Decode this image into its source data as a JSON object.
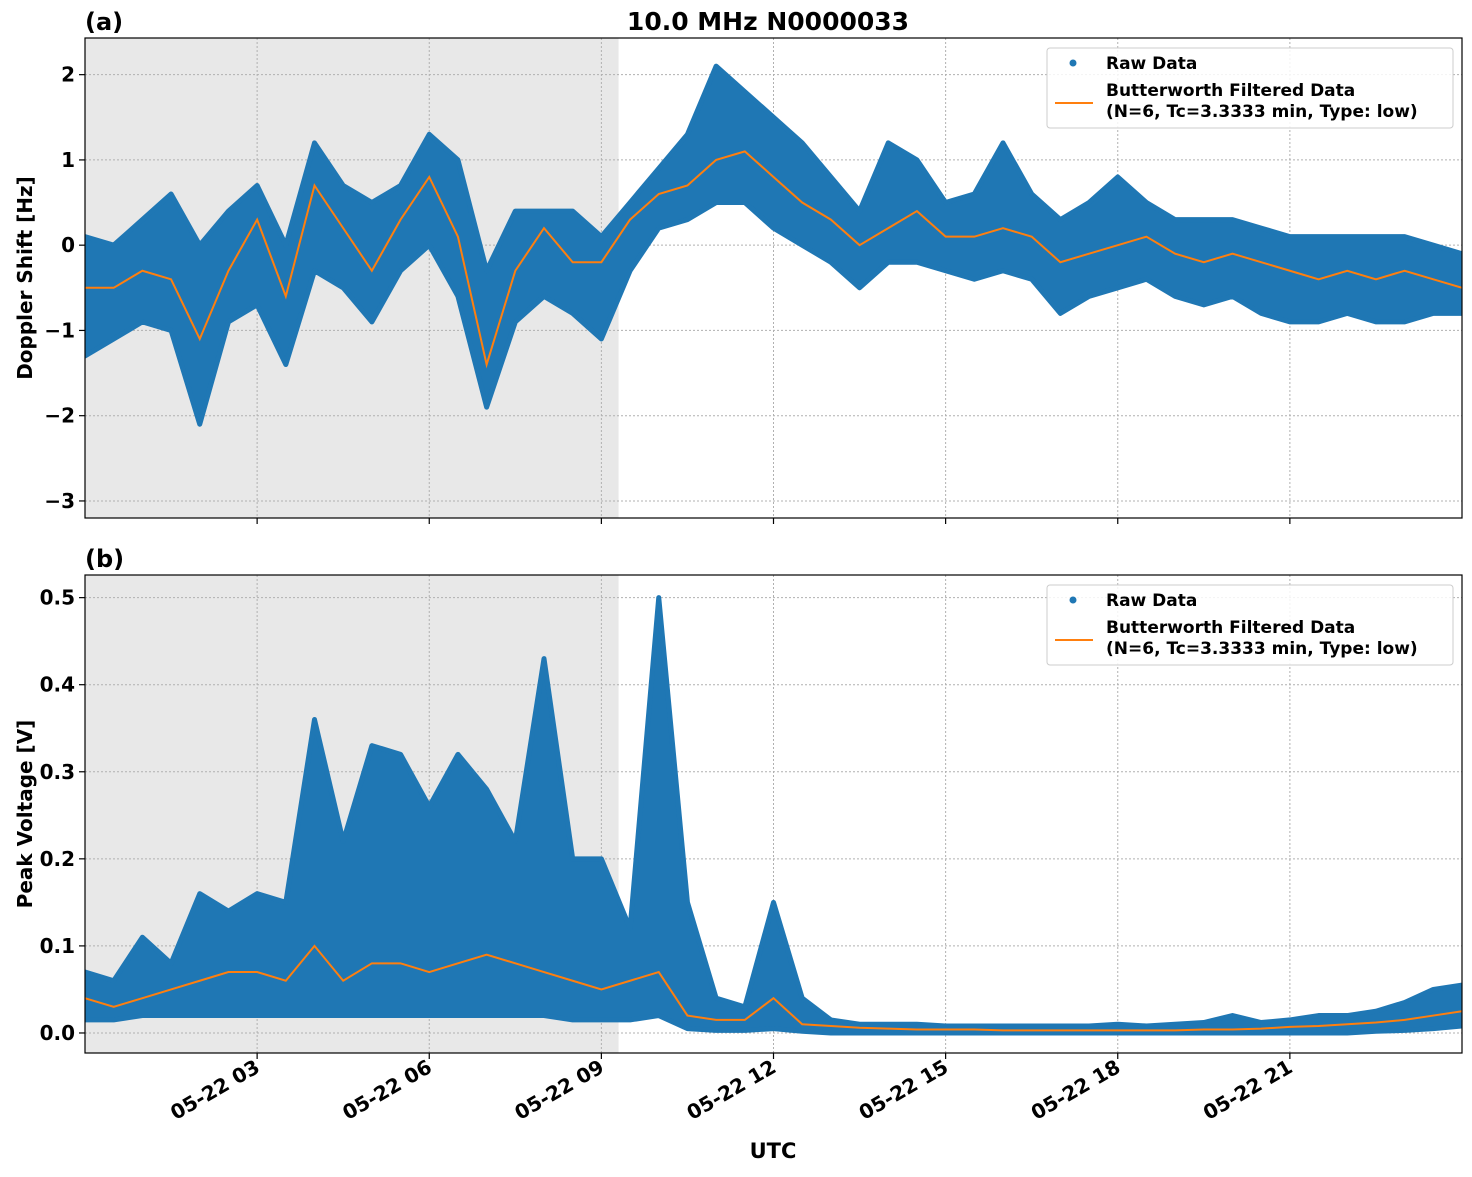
{
  "title": "10.0 MHz N0000033",
  "xlabel": "UTC",
  "x_ticks": [
    "05-22 03",
    "05-22 06",
    "05-22 09",
    "05-22 12",
    "05-22 15",
    "05-22 18",
    "05-22 21"
  ],
  "chart_data": [
    {
      "type": "scatter",
      "panel_label": "(a)",
      "ylabel": "Doppler Shift [Hz]",
      "xlim_hours": [
        0,
        24
      ],
      "ylim": [
        -3.2,
        2.43
      ],
      "y_ticks": [
        -3,
        -2,
        -1,
        0,
        1,
        2
      ],
      "y_tick_labels": [
        "−3",
        "−2",
        "−1",
        "0",
        "1",
        "2"
      ],
      "grid": true,
      "shaded_region_hours": [
        0,
        9.3
      ],
      "legend_placement": "top-right",
      "x_hours": [
        0,
        0.5,
        1,
        1.5,
        2,
        2.5,
        3,
        3.5,
        4,
        4.5,
        5,
        5.5,
        6,
        6.5,
        7,
        7.5,
        8,
        8.5,
        9,
        9.5,
        10,
        10.5,
        11,
        11.5,
        12,
        12.5,
        13,
        13.5,
        14,
        14.5,
        15,
        15.5,
        16,
        16.5,
        17,
        17.5,
        18,
        18.5,
        19,
        19.5,
        20,
        20.5,
        21,
        21.5,
        22,
        22.5,
        23,
        23.5,
        24
      ],
      "series": [
        {
          "name": "Raw Data",
          "color": "#1f77b4",
          "kind": "points",
          "low": [
            -1.3,
            -1.1,
            -0.9,
            -1.0,
            -2.1,
            -0.9,
            -0.7,
            -1.4,
            -0.3,
            -0.5,
            -0.9,
            -0.3,
            0.0,
            -0.6,
            -1.9,
            -0.9,
            -0.6,
            -0.8,
            -1.1,
            -0.3,
            0.2,
            0.3,
            0.5,
            0.5,
            0.2,
            0.0,
            -0.2,
            -0.5,
            -0.2,
            -0.2,
            -0.3,
            -0.4,
            -0.3,
            -0.4,
            -0.8,
            -0.6,
            -0.5,
            -0.4,
            -0.6,
            -0.7,
            -0.6,
            -0.8,
            -0.9,
            -0.9,
            -0.8,
            -0.9,
            -0.9,
            -0.8,
            -0.8
          ],
          "high": [
            0.1,
            0.0,
            0.3,
            0.6,
            0.0,
            0.4,
            0.7,
            0.0,
            1.2,
            0.7,
            0.5,
            0.7,
            1.3,
            1.0,
            -0.3,
            0.4,
            0.4,
            0.4,
            0.1,
            0.5,
            0.9,
            1.3,
            2.1,
            1.8,
            1.5,
            1.2,
            0.8,
            0.4,
            1.2,
            1.0,
            0.5,
            0.6,
            1.2,
            0.6,
            0.3,
            0.5,
            0.8,
            0.5,
            0.3,
            0.3,
            0.3,
            0.2,
            0.1,
            0.1,
            0.1,
            0.1,
            0.1,
            0.0,
            -0.1
          ]
        },
        {
          "name": "Butterworth Filtered Data\n(N=6, Tc=3.3333 min, Type: low)",
          "color": "#ff7f0e",
          "kind": "line",
          "values": [
            -0.5,
            -0.5,
            -0.3,
            -0.4,
            -1.1,
            -0.3,
            0.3,
            -0.6,
            0.7,
            0.2,
            -0.3,
            0.3,
            0.8,
            0.1,
            -1.4,
            -0.3,
            0.2,
            -0.2,
            -0.2,
            0.3,
            0.6,
            0.7,
            1.0,
            1.1,
            0.8,
            0.5,
            0.3,
            0.0,
            0.2,
            0.4,
            0.1,
            0.1,
            0.2,
            0.1,
            -0.2,
            -0.1,
            0.0,
            0.1,
            -0.1,
            -0.2,
            -0.1,
            -0.2,
            -0.3,
            -0.4,
            -0.3,
            -0.4,
            -0.3,
            -0.4,
            -0.5
          ]
        }
      ]
    },
    {
      "type": "scatter",
      "panel_label": "(b)",
      "ylabel": "Peak Voltage [V]",
      "xlim_hours": [
        0,
        24
      ],
      "ylim": [
        -0.023,
        0.526
      ],
      "y_ticks": [
        0,
        0.1,
        0.2,
        0.3,
        0.4,
        0.5
      ],
      "y_tick_labels": [
        "0.0",
        "0.1",
        "0.2",
        "0.3",
        "0.4",
        "0.5"
      ],
      "grid": true,
      "shaded_region_hours": [
        0,
        9.3
      ],
      "legend_placement": "top-right",
      "x_hours": [
        0,
        0.5,
        1,
        1.5,
        2,
        2.5,
        3,
        3.5,
        4,
        4.5,
        5,
        5.5,
        6,
        6.5,
        7,
        7.5,
        8,
        8.5,
        9,
        9.5,
        10,
        10.5,
        11,
        11.5,
        12,
        12.5,
        13,
        13.5,
        14,
        14.5,
        15,
        15.5,
        16,
        16.5,
        17,
        17.5,
        18,
        18.5,
        19,
        19.5,
        20,
        20.5,
        21,
        21.5,
        22,
        22.5,
        23,
        23.5,
        24
      ],
      "series": [
        {
          "name": "Raw Data",
          "color": "#1f77b4",
          "kind": "points",
          "low": [
            0.015,
            0.015,
            0.02,
            0.02,
            0.02,
            0.02,
            0.02,
            0.02,
            0.02,
            0.02,
            0.02,
            0.02,
            0.02,
            0.02,
            0.02,
            0.02,
            0.02,
            0.015,
            0.015,
            0.015,
            0.02,
            0.005,
            0.003,
            0.003,
            0.005,
            0.002,
            0.0,
            0.0,
            0.0,
            0.0,
            0.0,
            0.0,
            0.0,
            0.0,
            0.0,
            0.0,
            0.0,
            0.0,
            0.0,
            0.0,
            0.0,
            0.0,
            0.0,
            0.0,
            0.0,
            0.002,
            0.003,
            0.005,
            0.008
          ],
          "high": [
            0.07,
            0.06,
            0.11,
            0.08,
            0.16,
            0.14,
            0.16,
            0.15,
            0.36,
            0.22,
            0.33,
            0.32,
            0.26,
            0.32,
            0.28,
            0.22,
            0.43,
            0.2,
            0.2,
            0.12,
            0.5,
            0.15,
            0.04,
            0.03,
            0.15,
            0.04,
            0.015,
            0.01,
            0.01,
            0.01,
            0.008,
            0.008,
            0.008,
            0.008,
            0.008,
            0.008,
            0.01,
            0.008,
            0.01,
            0.012,
            0.02,
            0.012,
            0.015,
            0.02,
            0.02,
            0.025,
            0.035,
            0.05,
            0.055
          ]
        },
        {
          "name": "Butterworth Filtered Data\n(N=6, Tc=3.3333 min, Type: low)",
          "color": "#ff7f0e",
          "kind": "line",
          "values": [
            0.04,
            0.03,
            0.04,
            0.05,
            0.06,
            0.07,
            0.07,
            0.06,
            0.1,
            0.06,
            0.08,
            0.08,
            0.07,
            0.08,
            0.09,
            0.08,
            0.07,
            0.06,
            0.05,
            0.06,
            0.07,
            0.02,
            0.015,
            0.015,
            0.04,
            0.01,
            0.008,
            0.006,
            0.005,
            0.004,
            0.004,
            0.004,
            0.003,
            0.003,
            0.003,
            0.003,
            0.003,
            0.003,
            0.003,
            0.004,
            0.004,
            0.005,
            0.007,
            0.008,
            0.01,
            0.012,
            0.015,
            0.02,
            0.025
          ]
        }
      ]
    }
  ]
}
